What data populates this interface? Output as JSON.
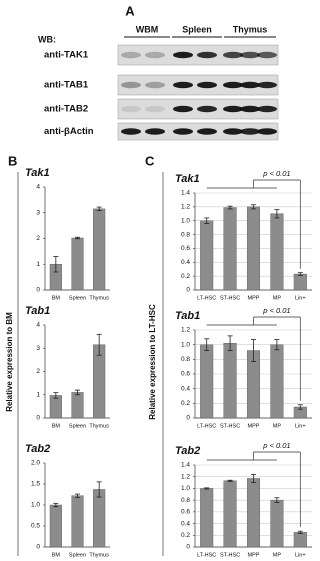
{
  "panel_labels": [
    "A",
    "B",
    "C"
  ],
  "western_blot": {
    "label": "WB:",
    "columns": [
      "WBM",
      "Spleen",
      "Thymus"
    ],
    "rows": [
      "anti-TAK1",
      "anti-TAB1",
      "anti-TAB2",
      "anti-βActin"
    ]
  },
  "shared_ylabels": [
    "Relative expression to BM",
    "Relative expression to LT-HSC"
  ],
  "chart_data": [
    {
      "type": "bar",
      "title": "Tak1",
      "categories": [
        "BM",
        "Spleen",
        "Thymus"
      ],
      "values": [
        1.0,
        2.02,
        3.15
      ],
      "errors": [
        0.3,
        0.03,
        0.07
      ],
      "color": "#8c8c8c",
      "ylim": [
        0,
        4
      ],
      "yticks": [
        0,
        1,
        2,
        3,
        4
      ],
      "grid": false
    },
    {
      "type": "bar",
      "title": "Tab1",
      "categories": [
        "BM",
        "Spleen",
        "Thymus"
      ],
      "values": [
        0.97,
        1.1,
        3.15
      ],
      "errors": [
        0.12,
        0.1,
        0.45
      ],
      "color": "#8c8c8c",
      "ylim": [
        0,
        4
      ],
      "yticks": [
        0,
        1,
        2,
        3,
        4
      ],
      "grid": false
    },
    {
      "type": "bar",
      "title": "Tab2",
      "categories": [
        "BM",
        "Spleen",
        "Thymus"
      ],
      "values": [
        1.0,
        1.22,
        1.37
      ],
      "errors": [
        0.04,
        0.04,
        0.18
      ],
      "color": "#8c8c8c",
      "ylim": [
        0,
        2
      ],
      "yticks": [
        0,
        0.5,
        {
          "value": 1,
          "label": "1.0"
        },
        1.5,
        {
          "value": 2,
          "label": "2.0"
        }
      ],
      "grid": false
    },
    {
      "type": "bar",
      "title": "Tak1",
      "categories": [
        "LT-HSC",
        "ST-HSC",
        "MPP",
        "MP",
        "Lin+"
      ],
      "values": [
        1.0,
        1.19,
        1.2,
        1.1,
        0.23
      ],
      "errors": [
        0.04,
        0.02,
        0.03,
        0.06,
        0.02
      ],
      "color": "#8c8c8c",
      "ylim": [
        0,
        1.4
      ],
      "yticks": [
        0,
        0.2,
        0.4,
        0.6,
        0.8,
        {
          "value": 1,
          "label": "1.0"
        },
        1.2,
        1.4
      ],
      "grid": true,
      "annotation": "p < 0.01"
    },
    {
      "type": "bar",
      "title": "Tab1",
      "categories": [
        "LT-HSC",
        "ST-HSC",
        "MPP",
        "MP",
        "Lin+"
      ],
      "values": [
        1.0,
        1.02,
        0.92,
        1.0,
        0.15
      ],
      "errors": [
        0.08,
        0.1,
        0.15,
        0.07,
        0.03
      ],
      "color": "#8c8c8c",
      "ylim": [
        0,
        1.2
      ],
      "yticks": [
        0,
        0.2,
        0.4,
        0.6,
        0.8,
        {
          "value": 1,
          "label": "1.0"
        },
        1.2
      ],
      "grid": true,
      "annotation": "p < 0.01"
    },
    {
      "type": "bar",
      "title": "Tab2",
      "categories": [
        "LT-HSC",
        "ST-HSC",
        "MPP",
        "MP",
        "Lin+"
      ],
      "values": [
        1.0,
        1.13,
        1.17,
        0.8,
        0.25
      ],
      "errors": [
        0.01,
        0.01,
        0.07,
        0.04,
        0.02
      ],
      "color": "#8c8c8c",
      "ylim": [
        0,
        1.4
      ],
      "yticks": [
        0,
        0.2,
        0.4,
        0.6,
        0.8,
        {
          "value": 1,
          "label": "1.0"
        },
        1.2,
        1.4
      ],
      "grid": true,
      "annotation": "p < 0.01"
    }
  ]
}
